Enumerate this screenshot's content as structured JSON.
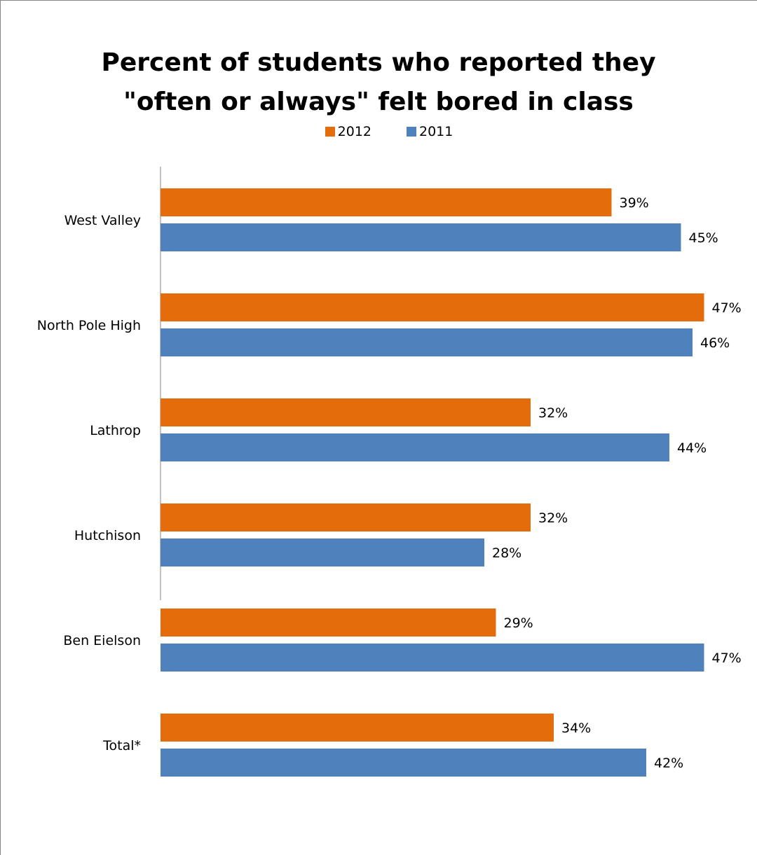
{
  "chart_data": {
    "type": "bar",
    "orientation": "horizontal",
    "title": "Percent of students who reported they \"often or always\" felt bored in class",
    "title_lines": [
      "Percent of students who reported they",
      "\"often or always\" felt bored in class"
    ],
    "categories": [
      "West Valley",
      "North Pole High",
      "Lathrop",
      "Hutchison",
      "Ben Eielson",
      "Total*"
    ],
    "series": [
      {
        "name": "2012",
        "color": "#E46C0A",
        "values": [
          39,
          47,
          32,
          32,
          29,
          34
        ],
        "labels": [
          "39%",
          "47%",
          "32%",
          "32%",
          "29%",
          "34%"
        ]
      },
      {
        "name": "2011",
        "color": "#4F81BD",
        "values": [
          45,
          46,
          44,
          28,
          47,
          42
        ],
        "labels": [
          "45%",
          "46%",
          "44%",
          "28%",
          "47%",
          "42%"
        ]
      }
    ],
    "legend_position": "top",
    "value_unit": "%",
    "xlim": [
      0,
      50
    ],
    "grid": false
  }
}
